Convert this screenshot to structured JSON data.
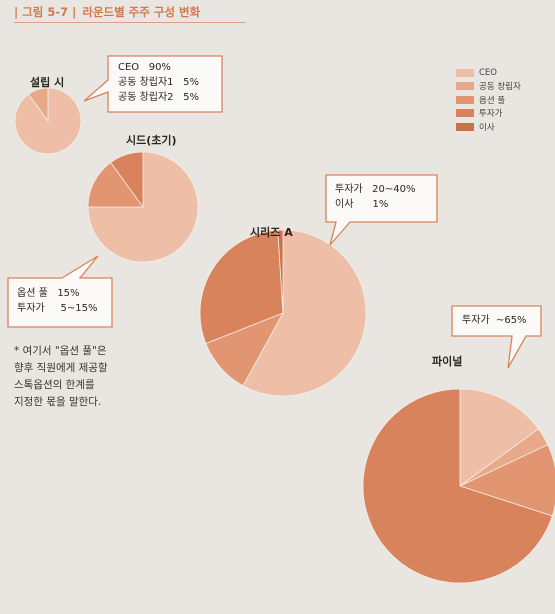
{
  "figure": {
    "number": "그림 5-7",
    "title": "라운드별 주주 구성 변화"
  },
  "legend": [
    {
      "label": "CEO",
      "color": "#eebfa6"
    },
    {
      "label": "공동 창립자",
      "color": "#e8a98a"
    },
    {
      "label": "옵션 풀",
      "color": "#e19671"
    },
    {
      "label": "투자가",
      "color": "#d8835c"
    },
    {
      "label": "이사",
      "color": "#cc7047"
    }
  ],
  "chart_data": [
    {
      "type": "pie",
      "title": "설립 시",
      "categories": [
        "CEO",
        "공동 창립자"
      ],
      "values": [
        90,
        10
      ]
    },
    {
      "type": "pie",
      "title": "시드(초기)",
      "categories": [
        "CEO",
        "옵션 풀",
        "투자가"
      ],
      "values": [
        75,
        15,
        10
      ]
    },
    {
      "type": "pie",
      "title": "시리즈 A",
      "categories": [
        "CEO",
        "옵션 풀",
        "투자가",
        "이사"
      ],
      "values": [
        58,
        11,
        30,
        1
      ]
    },
    {
      "type": "pie",
      "title": "파이널",
      "categories": [
        "CEO",
        "공동 창립자",
        "옵션 풀",
        "투자가"
      ],
      "values": [
        15,
        3,
        12,
        70
      ]
    }
  ],
  "callouts": {
    "founding": [
      "CEO   90%",
      "공동 창립자1   5%",
      "공동 창립자2   5%"
    ],
    "series_a": [
      "투자가   20~40%",
      "이사      1%"
    ],
    "seed": [
      "옵션 풀   15%",
      "투자가     5~15%"
    ],
    "final": [
      "투자가  ~65%"
    ]
  },
  "footnote": [
    "* 여기서 \"옵션 풀\"은",
    "향후 직원에게 제공할",
    "스톡옵션의 한계를",
    "지정한 몫을 말한다."
  ]
}
